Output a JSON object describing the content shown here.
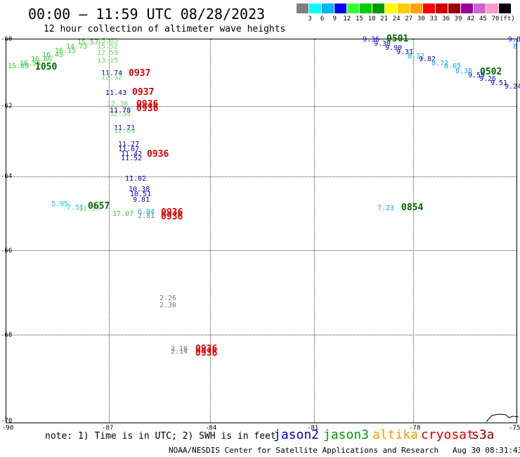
{
  "title": "00:00 — 11:59 UTC 08/28/2023",
  "subtitle": "12 hour collection of altimeter wave heights",
  "colorbar": {
    "swatches": [
      "#7f7f7f",
      "#00ffff",
      "#00b4ff",
      "#0000ff",
      "#33ff33",
      "#00cc00",
      "#009900",
      "#ffff00",
      "#ffcc00",
      "#ffa500",
      "#ff0000",
      "#cc0000",
      "#990000",
      "#990099",
      "#cc66cc",
      "#ff99cc",
      "#000000"
    ],
    "labels": [
      "3",
      "6",
      "9",
      "12",
      "15",
      "18",
      "21",
      "24",
      "27",
      "30",
      "33",
      "36",
      "39",
      "42",
      "45",
      "70"
    ],
    "unit": "(ft)"
  },
  "axes": {
    "lat_labels": [
      "-60",
      "-62",
      "-64",
      "-66",
      "-68",
      "-70"
    ],
    "lon_labels": [
      "-90",
      "-87",
      "-84",
      "-81",
      "-78",
      "-75"
    ]
  },
  "observations": [
    {
      "t": "15.57",
      "c": "#33cc33"
    },
    {
      "t": "15.63",
      "c": "#66dd66"
    },
    {
      "t": "15.52",
      "c": "#66dd66"
    },
    {
      "t": "14.73",
      "c": "#33cc33"
    },
    {
      "t": "16.15",
      "c": "#33cc33"
    },
    {
      "t": "16.49",
      "c": "#33cc33"
    },
    {
      "t": "16.86",
      "c": "#33cc33"
    },
    {
      "t": "16.55",
      "c": "#33cc33"
    },
    {
      "t": "15.89",
      "c": "#33cc33"
    },
    {
      "t": "12.59",
      "c": "#66dd66"
    },
    {
      "t": "13.15",
      "c": "#66dd66"
    },
    {
      "t": "11.74",
      "c": "#0000cc"
    },
    {
      "t": "12.32",
      "c": "#66dd66"
    },
    {
      "t": "11.43",
      "c": "#0000cc"
    },
    {
      "t": "12.38",
      "c": "#66dd66"
    },
    {
      "t": "12.34",
      "c": "#66dd66"
    },
    {
      "t": "11.78",
      "c": "#0000cc"
    },
    {
      "t": "11.71",
      "c": "#0000cc"
    },
    {
      "t": "12.04",
      "c": "#66dd66"
    },
    {
      "t": "11.27",
      "c": "#0000cc"
    },
    {
      "t": "11.67",
      "c": "#0000cc"
    },
    {
      "t": "11.42",
      "c": "#0000cc"
    },
    {
      "t": "11.52",
      "c": "#0000cc"
    },
    {
      "t": "11.02",
      "c": "#0000cc"
    },
    {
      "t": "10.38",
      "c": "#0000cc"
    },
    {
      "t": "10.51",
      "c": "#0000cc"
    },
    {
      "t": "9.81",
      "c": "#0000cc"
    },
    {
      "t": "5.95",
      "c": "#00cccc"
    },
    {
      "t": "7.51",
      "c": "#00cccc"
    },
    {
      "t": "11.37",
      "c": "#66dd66"
    },
    {
      "t": "17.07",
      "c": "#33cc33"
    },
    {
      "t": "6.04",
      "c": "#00aaff"
    },
    {
      "t": "2.81",
      "c": "#777777"
    },
    {
      "t": "2.26",
      "c": "#777777"
    },
    {
      "t": "2.30",
      "c": "#777777"
    },
    {
      "t": "2.10",
      "c": "#777777"
    },
    {
      "t": "2.14",
      "c": "#777777"
    },
    {
      "t": "9.36",
      "c": "#0000cc"
    },
    {
      "t": "9.38",
      "c": "#0000cc"
    },
    {
      "t": "9.90",
      "c": "#0000cc"
    },
    {
      "t": "9.31",
      "c": "#0000cc"
    },
    {
      "t": "8.72",
      "c": "#00aaff"
    },
    {
      "t": "9.82",
      "c": "#0000cc"
    },
    {
      "t": "8.72",
      "c": "#00aaff"
    },
    {
      "t": "8.65",
      "c": "#00aaff"
    },
    {
      "t": "8.30",
      "c": "#00aaff"
    },
    {
      "t": "9.59",
      "c": "#0000cc"
    },
    {
      "t": "9.26",
      "c": "#0000cc"
    },
    {
      "t": "9.51",
      "c": "#0000cc"
    },
    {
      "t": "9.24",
      "c": "#0000cc"
    },
    {
      "t": "9.8",
      "c": "#0000cc"
    },
    {
      "t": "8",
      "c": "#00aaff"
    },
    {
      "t": "7.23",
      "c": "#00aaff"
    }
  ],
  "times": [
    {
      "t": "1050",
      "c": "#006600"
    },
    {
      "t": "0937",
      "c": "#dd0000"
    },
    {
      "t": "0937",
      "c": "#dd0000"
    },
    {
      "t": "0936",
      "c": "#dd0000"
    },
    {
      "t": "0936",
      "c": "#dd0000"
    },
    {
      "t": "0936",
      "c": "#dd0000"
    },
    {
      "t": "0657",
      "c": "#006600"
    },
    {
      "t": "0936",
      "c": "#dd0000"
    },
    {
      "t": "0936",
      "c": "#dd0000"
    },
    {
      "t": "0936",
      "c": "#dd0000"
    },
    {
      "t": "0936",
      "c": "#dd0000"
    },
    {
      "t": "0501",
      "c": "#006600"
    },
    {
      "t": "0502",
      "c": "#006600"
    },
    {
      "t": "0854",
      "c": "#006600"
    }
  ],
  "footer": {
    "note": "note: 1) Time is in UTC; 2) SWH is in feet",
    "legend": [
      {
        "label": "jason2",
        "color": "#0000cc"
      },
      {
        "label": "jason3",
        "color": "#009900"
      },
      {
        "label": "altika",
        "color": "#ff9900"
      },
      {
        "label": "cryosat",
        "color": "#dd0000"
      },
      {
        "label": "s3a",
        "color": "#990000"
      }
    ],
    "credit": "NOAA/NESDIS Center for Satellite Applications and Research",
    "timestamp": "Aug 30 08:31:43 UTC 2023"
  }
}
